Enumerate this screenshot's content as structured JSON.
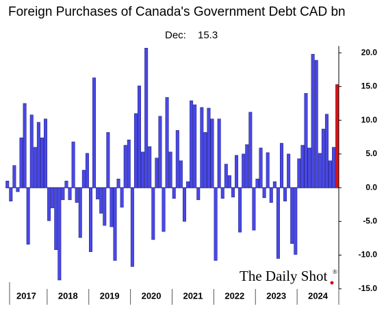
{
  "chart_data": {
    "type": "bar",
    "title": "Foreign Purchases of Canada's Government Debt CAD bn",
    "subtitle_label": "Dec:",
    "watermark": "The Daily Shot",
    "watermark_mark": "®",
    "year_labels": [
      "2017",
      "2018",
      "2019",
      "2020",
      "2021",
      "2022",
      "2023",
      "2024"
    ],
    "months_per_year": 12,
    "series": [
      {
        "color": "#4848e8",
        "highlight_color": "#e01010",
        "values": [
          1.0,
          -2.0,
          3.3,
          -0.6,
          7.4,
          12.5,
          -8.4,
          10.8,
          6.0,
          9.7,
          7.4,
          10.2,
          -4.9,
          -3.0,
          -9.2,
          -13.7,
          -1.8,
          1.0,
          -1.8,
          6.8,
          -2.2,
          -7.4,
          2.6,
          5.1,
          -9.5,
          16.3,
          -1.7,
          -3.8,
          -5.6,
          8.2,
          -5.8,
          -10.8,
          1.3,
          -2.9,
          6.3,
          7.1,
          -11.7,
          11.0,
          15.1,
          5.3,
          20.7,
          6.1,
          -7.7,
          4.4,
          10.6,
          -6.5,
          13.4,
          5.3,
          -1.6,
          8.5,
          4.0,
          -5.0,
          0.9,
          12.9,
          12.3,
          -1.8,
          11.9,
          8.2,
          11.8,
          10.2,
          -10.8,
          10.2,
          -1.6,
          3.5,
          1.8,
          -1.4,
          4.8,
          -6.6,
          5.0,
          6.4,
          11.2,
          -6.3,
          1.3,
          5.9,
          -1.5,
          5.2,
          -2.2,
          0.9,
          -10.5,
          6.6,
          -2.0,
          5.0,
          -8.3,
          -9.9,
          4.3,
          6.3,
          14.0,
          5.9,
          19.8,
          18.9,
          5.1,
          8.7,
          10.9,
          4.0,
          6.0,
          15.3
        ]
      }
    ],
    "ylim": [
      -15,
      21
    ],
    "yticks": [
      {
        "value": 20,
        "label": "20.0"
      },
      {
        "value": 15,
        "label": "15.0"
      },
      {
        "value": 10,
        "label": "10.0"
      },
      {
        "value": 5,
        "label": "5.0"
      },
      {
        "value": 0,
        "label": "0.0"
      },
      {
        "value": -5,
        "label": "-5.0"
      },
      {
        "value": -10,
        "label": "-10.0"
      },
      {
        "value": -15,
        "label": "-15.0"
      }
    ]
  }
}
